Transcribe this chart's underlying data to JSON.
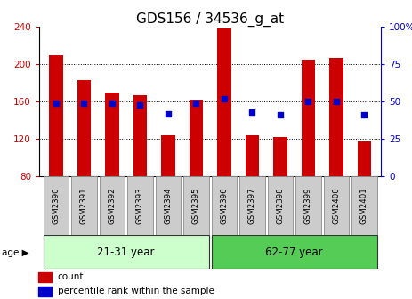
{
  "title": "GDS156 / 34536_g_at",
  "samples": [
    "GSM2390",
    "GSM2391",
    "GSM2392",
    "GSM2393",
    "GSM2394",
    "GSM2395",
    "GSM2396",
    "GSM2397",
    "GSM2398",
    "GSM2399",
    "GSM2400",
    "GSM2401"
  ],
  "counts": [
    210,
    183,
    170,
    167,
    124,
    162,
    238,
    124,
    122,
    205,
    207,
    117
  ],
  "percentiles": [
    49,
    49,
    49,
    48,
    42,
    49,
    52,
    43,
    41,
    50,
    50,
    41
  ],
  "group1_label": "21-31 year",
  "group2_label": "62-77 year",
  "ylim_left": [
    80,
    240
  ],
  "ylim_right": [
    0,
    100
  ],
  "yticks_left": [
    80,
    120,
    160,
    200,
    240
  ],
  "yticks_right": [
    0,
    25,
    50,
    75,
    100
  ],
  "ytick_right_labels": [
    "0",
    "25",
    "50",
    "75",
    "100%"
  ],
  "bar_color": "#cc0000",
  "dot_color": "#0000cc",
  "bar_bottom": 80,
  "background_color": "#ffffff",
  "title_fontsize": 11,
  "tick_fontsize": 7.5,
  "group1_color": "#ccffcc",
  "group2_color": "#55cc55",
  "xtick_bg": "#cccccc",
  "grid_color": "#000000",
  "spine_color": "#000000"
}
